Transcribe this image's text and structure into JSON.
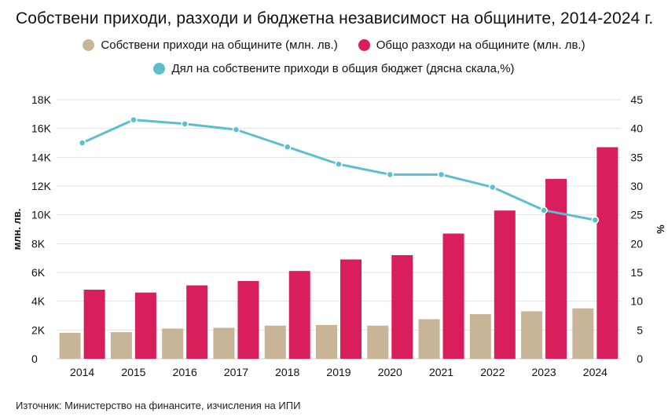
{
  "chart_data": {
    "type": "bar",
    "title": "Собствени приходи, разходи и бюджетна независимост на общините, 2014-2024 г.",
    "categories": [
      "2014",
      "2015",
      "2016",
      "2017",
      "2018",
      "2019",
      "2020",
      "2021",
      "2022",
      "2023",
      "2024"
    ],
    "series": [
      {
        "name": "Собствени приходи на общините (млн. лв.)",
        "type": "bar",
        "axis": "left",
        "color": "#c8b497",
        "values": [
          1800,
          1850,
          2100,
          2150,
          2300,
          2350,
          2300,
          2750,
          3100,
          3300,
          3500
        ]
      },
      {
        "name": "Общо разходи на общините (млн. лв.)",
        "type": "bar",
        "axis": "left",
        "color": "#d81e5b",
        "values": [
          4800,
          4600,
          5100,
          5400,
          6100,
          6900,
          7200,
          8700,
          10300,
          12500,
          14700
        ]
      },
      {
        "name": "Дял на собствените приходи в общия бюджет (дясна скала,%)",
        "type": "line",
        "axis": "right",
        "color": "#5bbfce",
        "values": [
          37.5,
          41.5,
          40.8,
          39.8,
          36.8,
          33.8,
          32.0,
          32.0,
          29.8,
          25.8,
          24.1
        ]
      }
    ],
    "yleft": {
      "label": "млн. лв.",
      "lim": [
        0,
        18000
      ],
      "ticks": [
        0,
        2000,
        4000,
        6000,
        8000,
        10000,
        12000,
        14000,
        16000,
        18000
      ],
      "tick_labels": [
        "0",
        "2K",
        "4K",
        "6K",
        "8K",
        "10K",
        "12K",
        "14K",
        "16K",
        "18K"
      ]
    },
    "yright": {
      "label": "%",
      "lim": [
        0,
        45
      ],
      "ticks": [
        0,
        5,
        10,
        15,
        20,
        25,
        30,
        35,
        40,
        45
      ],
      "tick_labels": [
        "0",
        "5",
        "10",
        "15",
        "20",
        "25",
        "30",
        "35",
        "40",
        "45"
      ]
    },
    "grid": true,
    "legend": "top"
  },
  "source": "Източник: Министерство на финансите, изчисления на ИПИ"
}
